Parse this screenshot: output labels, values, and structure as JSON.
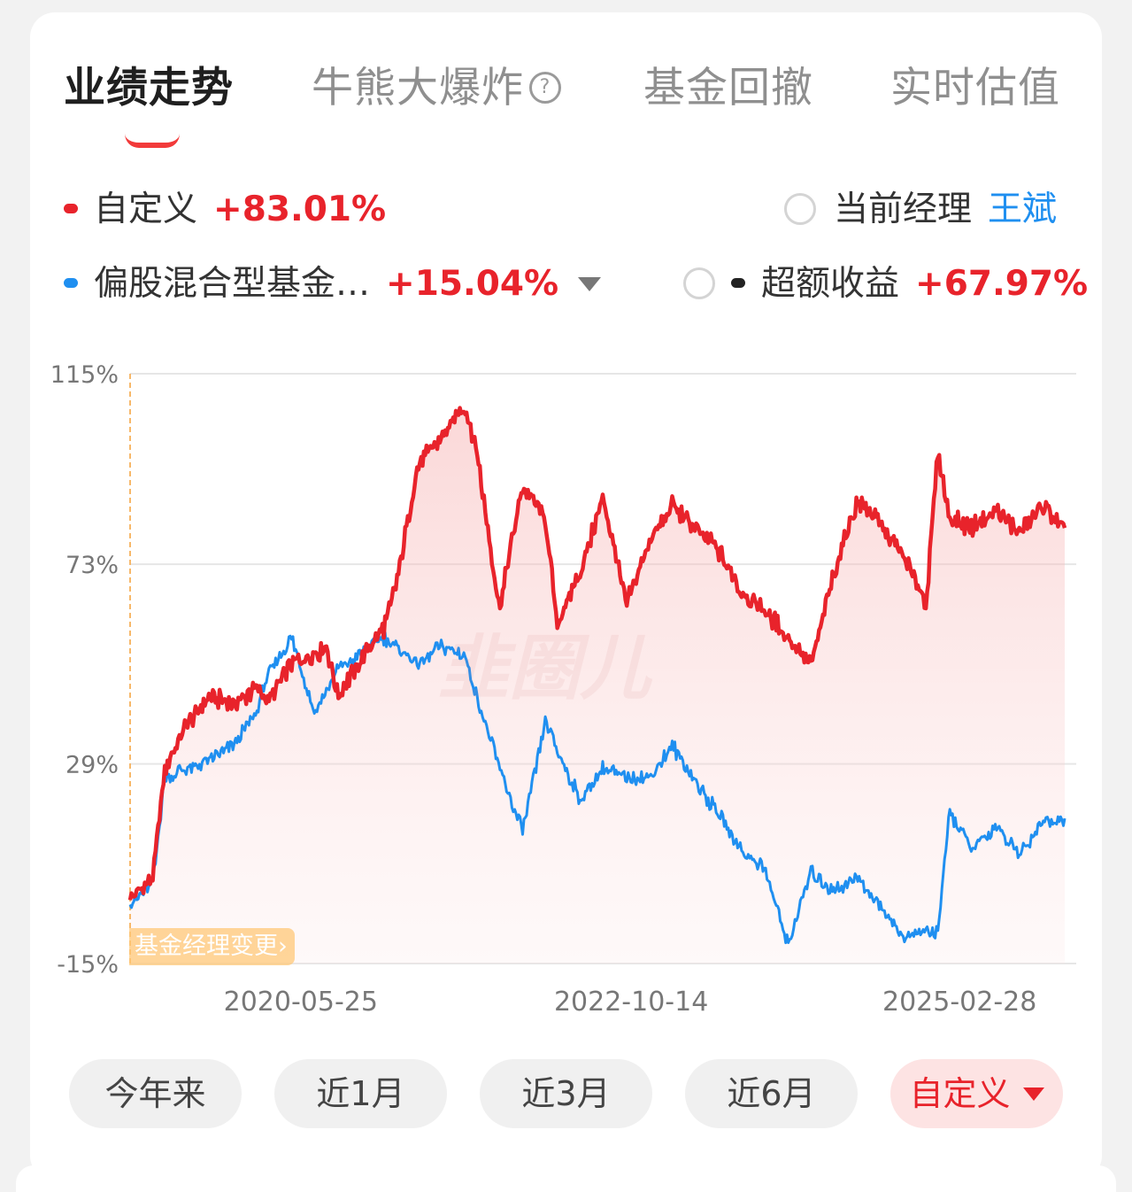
{
  "tabs": [
    {
      "label": "业绩走势",
      "active": true
    },
    {
      "label": "牛熊大爆炸",
      "active": false,
      "help": "?"
    },
    {
      "label": "基金回撤",
      "active": false
    },
    {
      "label": "实时估值",
      "active": false
    }
  ],
  "legend": {
    "custom": {
      "label": "自定义",
      "value": "+83.01%"
    },
    "manager": {
      "label": "当前经理",
      "name": "王斌"
    },
    "benchmark": {
      "label": "偏股混合型基金…",
      "value": "+15.04%"
    },
    "excess": {
      "label": "超额收益",
      "value": "+67.97%"
    }
  },
  "badge": {
    "label": "基金经理变更",
    "arrow": "›"
  },
  "watermark": "韭圈儿",
  "ranges": [
    {
      "label": "今年来",
      "active": false
    },
    {
      "label": "近1月",
      "active": false
    },
    {
      "label": "近3月",
      "active": false
    },
    {
      "label": "近6月",
      "active": false
    },
    {
      "label": "自定义",
      "active": true
    }
  ],
  "colors": {
    "custom": "#e8232b",
    "benchmark": "#1f8ff0",
    "excess": "#222222",
    "manager_marker": "#f7b86a"
  },
  "chart_data": {
    "type": "line",
    "ylim": [
      -15,
      115
    ],
    "y_ticks": [
      "115%",
      "73%",
      "29%",
      "-15%"
    ],
    "x_ticks": [
      "2020-05-25",
      "2022-10-14",
      "2025-02-28"
    ],
    "x_range": [
      "2019-03",
      "2026-01"
    ],
    "series": [
      {
        "name": "自定义",
        "x": [
          "2019-03",
          "2019-05",
          "2019-06",
          "2019-08",
          "2019-10",
          "2019-12",
          "2020-02",
          "2020-03",
          "2020-05",
          "2020-07",
          "2020-08",
          "2020-09",
          "2020-11",
          "2021-01",
          "2021-02",
          "2021-04",
          "2021-06",
          "2021-08",
          "2021-09",
          "2021-11",
          "2022-01",
          "2022-03",
          "2022-04",
          "2022-06",
          "2022-08",
          "2022-10",
          "2022-12",
          "2023-02",
          "2023-04",
          "2023-06",
          "2023-08",
          "2023-10",
          "2023-12",
          "2024-02",
          "2024-04",
          "2024-06",
          "2024-08",
          "2024-10",
          "2024-12",
          "2025-01",
          "2025-02",
          "2025-04",
          "2025-06",
          "2025-08",
          "2025-10",
          "2025-12"
        ],
        "values": [
          -1,
          4,
          28,
          38,
          44,
          42,
          46,
          43,
          51,
          53,
          55,
          44,
          52,
          59,
          68,
          95,
          101,
          108,
          99,
          63,
          90,
          83,
          60,
          71,
          88,
          64,
          78,
          86,
          81,
          76,
          67,
          63,
          57,
          51,
          71,
          87,
          82,
          75,
          64,
          98,
          83,
          81,
          85,
          80,
          86,
          81
        ]
      },
      {
        "name": "偏股混合型基金…",
        "x": [
          "2019-03",
          "2019-05",
          "2019-06",
          "2019-08",
          "2019-10",
          "2019-12",
          "2020-02",
          "2020-03",
          "2020-05",
          "2020-07",
          "2020-08",
          "2020-09",
          "2020-11",
          "2021-01",
          "2021-02",
          "2021-04",
          "2021-06",
          "2021-08",
          "2021-09",
          "2021-11",
          "2022-01",
          "2022-03",
          "2022-04",
          "2022-06",
          "2022-08",
          "2022-10",
          "2022-12",
          "2023-02",
          "2023-04",
          "2023-06",
          "2023-08",
          "2023-10",
          "2023-12",
          "2024-02",
          "2024-04",
          "2024-06",
          "2024-08",
          "2024-10",
          "2024-12",
          "2025-01",
          "2025-02",
          "2025-04",
          "2025-06",
          "2025-08",
          "2025-10",
          "2025-12"
        ],
        "values": [
          -2,
          3,
          26,
          28,
          30,
          33,
          41,
          49,
          57,
          40,
          45,
          50,
          53,
          57,
          55,
          51,
          55,
          53,
          44,
          28,
          14,
          38,
          32,
          21,
          28,
          26,
          26,
          33,
          25,
          18,
          10,
          6,
          -11,
          5,
          1,
          4,
          -2,
          -9,
          -8,
          -8,
          18,
          10,
          15,
          9,
          16,
          17
        ]
      }
    ]
  }
}
